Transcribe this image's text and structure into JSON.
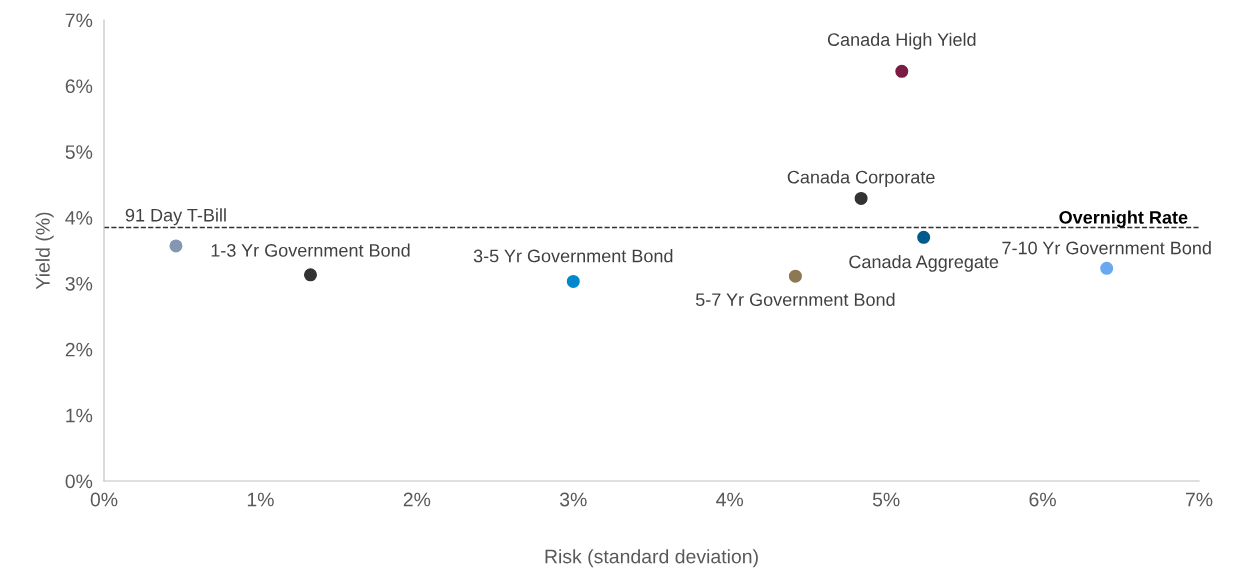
{
  "chart_data": {
    "type": "scatter",
    "xlabel": "Risk (standard deviation)",
    "ylabel": "Yield (%)",
    "xlim": [
      0,
      7
    ],
    "ylim": [
      0,
      7
    ],
    "xticks": [
      {
        "value": 0,
        "label": "0%"
      },
      {
        "value": 1,
        "label": "1%"
      },
      {
        "value": 2,
        "label": "2%"
      },
      {
        "value": 3,
        "label": "3%"
      },
      {
        "value": 4,
        "label": "4%"
      },
      {
        "value": 5,
        "label": "5%"
      },
      {
        "value": 6,
        "label": "6%"
      },
      {
        "value": 7,
        "label": "7%"
      }
    ],
    "yticks": [
      {
        "value": 0,
        "label": "0%"
      },
      {
        "value": 1,
        "label": "1%"
      },
      {
        "value": 2,
        "label": "2%"
      },
      {
        "value": 3,
        "label": "3%"
      },
      {
        "value": 4,
        "label": "4%"
      },
      {
        "value": 5,
        "label": "5%"
      },
      {
        "value": 6,
        "label": "6%"
      },
      {
        "value": 7,
        "label": "7%"
      }
    ],
    "grid": false,
    "legend": false,
    "marker": "circle",
    "series": [
      {
        "name": "91 Day T-Bill",
        "color": "#8497b0",
        "x": [
          0.46
        ],
        "values": [
          3.57
        ]
      },
      {
        "name": "1-3 Yr Government Bond",
        "color": "#333333",
        "x": [
          1.32
        ],
        "values": [
          3.13
        ]
      },
      {
        "name": "3-5 Yr Government Bond",
        "color": "#0087cd",
        "x": [
          3.0
        ],
        "values": [
          3.03
        ]
      },
      {
        "name": "5-7 Yr Government Bond",
        "color": "#8c7853",
        "x": [
          4.42
        ],
        "values": [
          3.11
        ]
      },
      {
        "name": "Canada Corporate",
        "color": "#333333",
        "x": [
          4.84
        ],
        "values": [
          4.29
        ]
      },
      {
        "name": "Canada High Yield",
        "color": "#7b1c45",
        "x": [
          5.1
        ],
        "values": [
          6.22
        ]
      },
      {
        "name": "Canada Aggregate",
        "color": "#005a8c",
        "x": [
          5.24
        ],
        "values": [
          3.7
        ]
      },
      {
        "name": "7-10 Yr Government Bond",
        "color": "#6aa9f0",
        "x": [
          6.41
        ],
        "values": [
          3.23
        ]
      }
    ],
    "ref_lines": [
      {
        "axis": "y",
        "value": 3.85,
        "label": "Overnight Rate",
        "color": "#333333",
        "line_style": "dashed"
      }
    ]
  }
}
